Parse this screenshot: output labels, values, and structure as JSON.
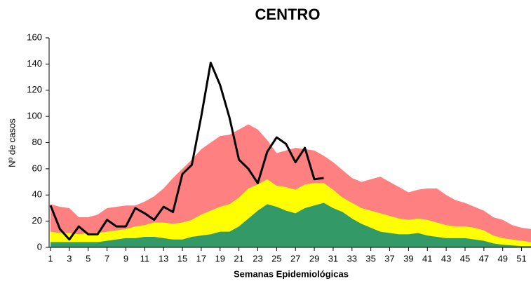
{
  "chart_data": {
    "type": "epidemic-channel",
    "title": "CENTRO",
    "x_label": "Semanas Epidemiológicas",
    "y_label": "Nº de casos",
    "x": [
      1,
      2,
      3,
      4,
      5,
      6,
      7,
      8,
      9,
      10,
      11,
      12,
      13,
      14,
      15,
      16,
      17,
      18,
      19,
      20,
      21,
      22,
      23,
      24,
      25,
      26,
      27,
      28,
      29,
      30,
      31,
      32,
      33,
      34,
      35,
      36,
      37,
      38,
      39,
      40,
      41,
      42,
      43,
      44,
      45,
      46,
      47,
      48,
      49,
      50,
      51,
      52
    ],
    "xlim": [
      1,
      52
    ],
    "xticks": [
      1,
      3,
      5,
      7,
      9,
      11,
      13,
      15,
      17,
      19,
      21,
      23,
      25,
      27,
      29,
      31,
      33,
      35,
      37,
      39,
      41,
      43,
      45,
      47,
      49,
      51
    ],
    "ylim": [
      0,
      160
    ],
    "yticks": [
      0,
      20,
      40,
      60,
      80,
      100,
      120,
      140,
      160
    ],
    "series": [
      {
        "kind": "area",
        "color": "#ff8080",
        "values": [
          33,
          31,
          30,
          23,
          23,
          25,
          30,
          31,
          32,
          32,
          35,
          39,
          45,
          53,
          60,
          67,
          75,
          80,
          85,
          86,
          90,
          94,
          90,
          82,
          72,
          74,
          76,
          75,
          74,
          70,
          65,
          59,
          53,
          50,
          52,
          54,
          50,
          46,
          42,
          44,
          45,
          45,
          40,
          36,
          34,
          31,
          28,
          23,
          21,
          17,
          15,
          14
        ]
      },
      {
        "kind": "area",
        "color": "#ffff00",
        "values": [
          12,
          11,
          11,
          10,
          11,
          11,
          12,
          13,
          14,
          16,
          17,
          19,
          19,
          18,
          19,
          21,
          25,
          28,
          31,
          33,
          38,
          45,
          48,
          52,
          47,
          46,
          44,
          48,
          49,
          49,
          44,
          38,
          34,
          30,
          28,
          26,
          24,
          22,
          21,
          22,
          21,
          19,
          17,
          16,
          16,
          15,
          13,
          9,
          7,
          6,
          5,
          4
        ]
      },
      {
        "kind": "area",
        "color": "#339966",
        "values": [
          4,
          4,
          4,
          4,
          4,
          4,
          5,
          6,
          7,
          7,
          8,
          8,
          7,
          6,
          6,
          8,
          9,
          10,
          12,
          12,
          16,
          22,
          28,
          33,
          31,
          28,
          26,
          30,
          32,
          34,
          30,
          27,
          22,
          18,
          15,
          12,
          11,
          10,
          10,
          11,
          9,
          8,
          7,
          7,
          7,
          6,
          5,
          3,
          2,
          1.5,
          1,
          1
        ]
      },
      {
        "kind": "line",
        "color": "#000000",
        "values": [
          32,
          14,
          6,
          16,
          10,
          10,
          21,
          16,
          16,
          30,
          26,
          21,
          31,
          27,
          56,
          63,
          100,
          141,
          124,
          99,
          67,
          60,
          49,
          73,
          84,
          79,
          65,
          76,
          52,
          53,
          null,
          null,
          null,
          null,
          null,
          null,
          null,
          null,
          null,
          null,
          null,
          null,
          null,
          null,
          null,
          null,
          null,
          null,
          null,
          null,
          null,
          null
        ]
      }
    ]
  }
}
